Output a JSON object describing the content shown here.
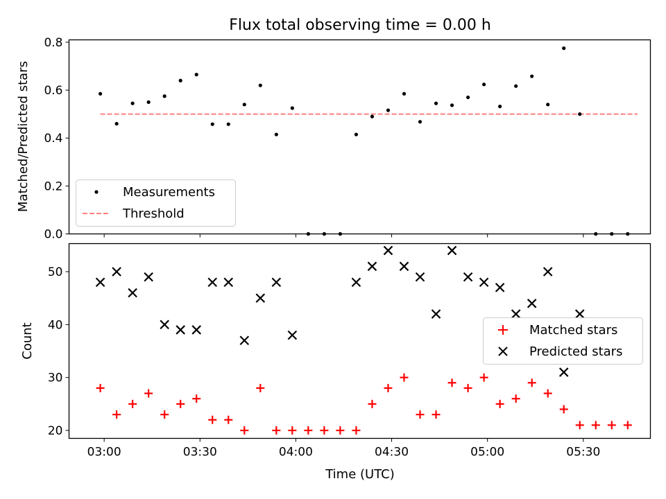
{
  "chart_data": [
    {
      "type": "scatter",
      "title": "Flux total observing time = 0.00 h",
      "ylabel": "Matched/Predicted stars",
      "xlabel": "",
      "ylim": [
        0,
        0.81
      ],
      "yticks": [
        0.0,
        0.2,
        0.4,
        0.6,
        0.8
      ],
      "ytick_labels": [
        "0.0",
        "0.2",
        "0.4",
        "0.6",
        "0.8"
      ],
      "legend": {
        "placement": "lower-left",
        "entries": [
          "Measurements",
          "Threshold"
        ]
      },
      "x_minutes": [
        178.8,
        183.9,
        188.9,
        193.9,
        198.9,
        203.9,
        208.9,
        213.9,
        218.9,
        223.9,
        228.9,
        233.9,
        238.9,
        243.9,
        248.9,
        253.9,
        258.9,
        263.9,
        268.9,
        273.9,
        278.9,
        283.9,
        288.9,
        293.9,
        298.9,
        303.9,
        308.9,
        313.9,
        318.9,
        323.9,
        328.9,
        333.9,
        338.9,
        343.9
      ],
      "series": [
        {
          "name": "Measurements",
          "color": "#000000",
          "marker": "dot",
          "values": [
            0.585,
            0.46,
            0.545,
            0.55,
            0.575,
            0.64,
            0.665,
            0.458,
            0.458,
            0.54,
            0.62,
            0.415,
            0.525,
            0,
            0,
            0,
            0.415,
            0.49,
            0.516,
            0.585,
            0.468,
            0.545,
            0.537,
            0.57,
            0.624,
            0.532,
            0.617,
            0.658,
            0.54,
            0.775,
            0.5,
            0,
            0,
            0
          ]
        },
        {
          "name": "Threshold",
          "color": "#ff7f7f",
          "style": "dashed",
          "x_minutes": [
            178.8,
            347.0
          ],
          "values": [
            0.5,
            0.5
          ]
        }
      ]
    },
    {
      "type": "scatter",
      "title": "",
      "ylabel": "Count",
      "xlabel": "Time (UTC)",
      "ylim": [
        18.5,
        55.3
      ],
      "yticks": [
        20,
        30,
        40,
        50
      ],
      "ytick_labels": [
        "20",
        "30",
        "40",
        "50"
      ],
      "xlim_minutes": [
        169,
        351
      ],
      "xticks_minutes": [
        180,
        210,
        240,
        270,
        300,
        330
      ],
      "xtick_labels": [
        "03:00",
        "03:30",
        "04:00",
        "04:30",
        "05:00",
        "05:30"
      ],
      "legend": {
        "placement": "center-right",
        "entries": [
          "Matched stars",
          "Predicted stars"
        ]
      },
      "x_minutes": [
        178.8,
        183.9,
        188.9,
        193.9,
        198.9,
        203.9,
        208.9,
        213.9,
        218.9,
        223.9,
        228.9,
        233.9,
        238.9,
        243.9,
        248.9,
        253.9,
        258.9,
        263.9,
        268.9,
        273.9,
        278.9,
        283.9,
        288.9,
        293.9,
        298.9,
        303.9,
        308.9,
        313.9,
        318.9,
        323.9,
        328.9,
        333.9,
        338.9,
        343.9
      ],
      "series": [
        {
          "name": "Matched stars",
          "color": "#ff0000",
          "marker": "plus",
          "values": [
            28,
            23,
            25,
            27,
            23,
            25,
            26,
            22,
            22,
            20,
            28,
            20,
            20,
            20,
            20,
            20,
            20,
            25,
            28,
            30,
            23,
            23,
            29,
            28,
            30,
            25,
            26,
            29,
            27,
            24,
            21,
            21,
            21,
            21
          ]
        },
        {
          "name": "Predicted stars",
          "color": "#000000",
          "marker": "x",
          "x_minutes": [
            178.8,
            183.9,
            188.9,
            193.9,
            198.9,
            203.9,
            208.9,
            213.9,
            218.9,
            223.9,
            228.9,
            233.9,
            238.9,
            258.9,
            263.9,
            268.9,
            273.9,
            278.9,
            283.9,
            288.9,
            293.9,
            298.9,
            303.9,
            308.9,
            313.9,
            318.9,
            323.9,
            328.9
          ],
          "values": [
            48,
            50,
            46,
            49,
            40,
            39,
            39,
            48,
            48,
            37,
            45,
            48,
            38,
            48,
            51,
            54,
            51,
            49,
            42,
            54,
            49,
            48,
            47,
            42,
            44,
            50,
            31,
            42
          ]
        }
      ]
    }
  ]
}
